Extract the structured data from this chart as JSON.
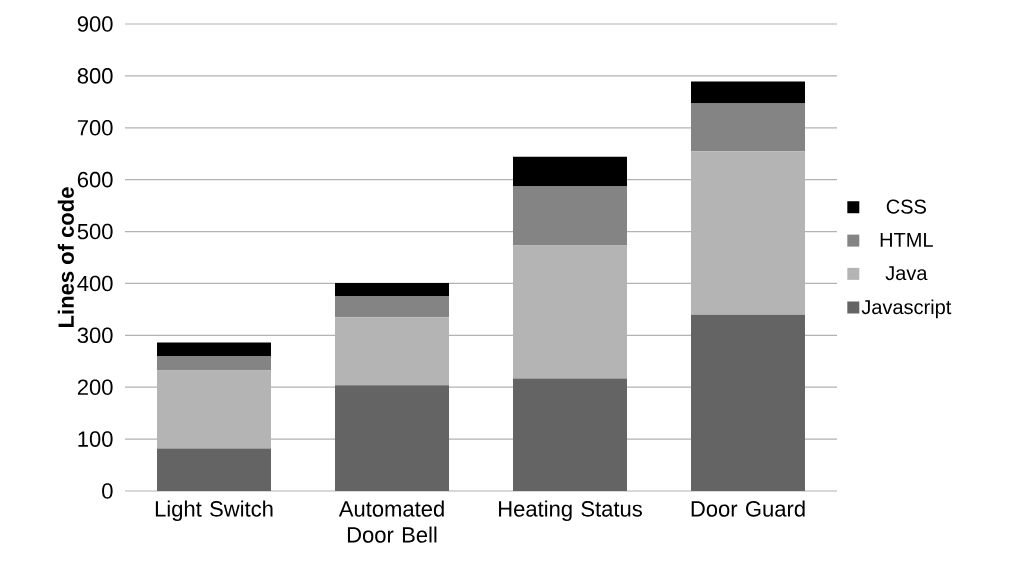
{
  "chart_data": {
    "type": "bar",
    "stacked": true,
    "ylabel": "Lines of code",
    "categories": [
      "Light Switch",
      "Automated Door Bell",
      "Heating Status",
      "Door Guard"
    ],
    "series": [
      {
        "name": "Javascript",
        "color": "#646464",
        "values": [
          82,
          204,
          217,
          340
        ]
      },
      {
        "name": "Java",
        "color": "#b4b4b4",
        "values": [
          150,
          131,
          256,
          315
        ]
      },
      {
        "name": "HTML",
        "color": "#848484",
        "values": [
          28,
          41,
          114,
          92
        ]
      },
      {
        "name": "CSS",
        "color": "#000000",
        "values": [
          26,
          25,
          57,
          42
        ]
      }
    ],
    "ylim": [
      0,
      900
    ],
    "yticks": [
      0,
      100,
      200,
      300,
      400,
      500,
      600,
      700,
      800,
      900
    ],
    "grid": "y",
    "legend": "right"
  }
}
